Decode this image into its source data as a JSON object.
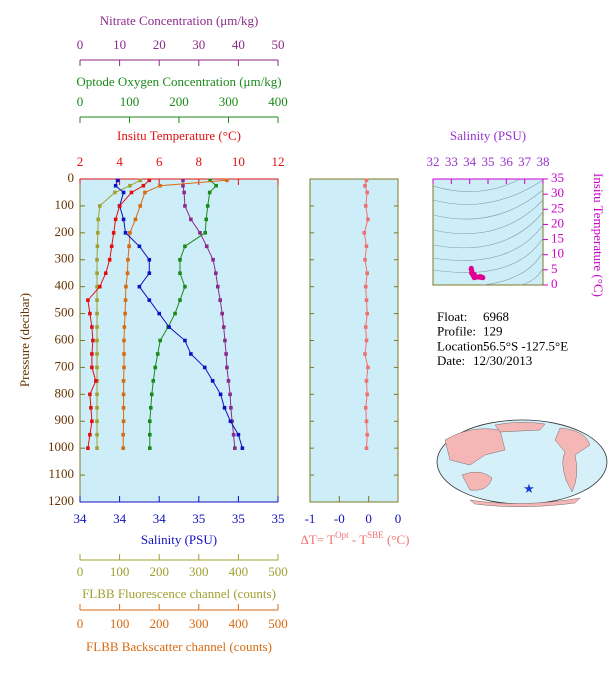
{
  "chart_data": [
    {
      "type": "profile",
      "ylabel": "Pressure (decibar)",
      "ylim": [
        0,
        1200
      ],
      "yticks": [
        0,
        100,
        200,
        300,
        400,
        500,
        600,
        700,
        800,
        900,
        1000,
        1100,
        1200
      ],
      "y": [
        5,
        25,
        50,
        100,
        150,
        200,
        250,
        300,
        350,
        400,
        450,
        500,
        550,
        600,
        650,
        700,
        750,
        800,
        850,
        900,
        950,
        1000
      ],
      "axes": [
        {
          "side": "top",
          "label": "Nitrate Concentration (μm/kg)",
          "color": "#8b2a8b",
          "xlim": [
            0,
            50
          ],
          "xticks": [
            0,
            10,
            20,
            30,
            40,
            50
          ]
        },
        {
          "side": "top",
          "label": "Optode Oxygen Concentration (μm/kg)",
          "color": "#1a8a1a",
          "xlim": [
            0,
            400
          ],
          "xticks": [
            0,
            100,
            200,
            300,
            400
          ]
        },
        {
          "side": "top",
          "label": "Insitu Temperature (°C)",
          "color": "#e01010",
          "xlim": [
            2,
            12
          ],
          "xticks": [
            2,
            4,
            6,
            8,
            10,
            12
          ]
        },
        {
          "side": "bottom",
          "label": "Salinity (PSU)",
          "color": "#1010c0",
          "xlim": [
            33.9,
            34.9
          ],
          "xticks": [
            {
              "value": 33.9,
              "label": "34"
            },
            {
              "value": 34.1,
              "label": "34"
            },
            {
              "value": 34.3,
              "label": "34"
            },
            {
              "value": 34.5,
              "label": "35"
            },
            {
              "value": 34.7,
              "label": "35"
            },
            {
              "value": 34.9,
              "label": "35"
            }
          ]
        },
        {
          "side": "bottom",
          "label": "FLBB Fluorescence channel (counts)",
          "color": "#a0a030",
          "xlim": [
            0,
            500
          ],
          "xticks": [
            0,
            100,
            200,
            300,
            400,
            500
          ]
        },
        {
          "side": "bottom",
          "label": "FLBB Backscatter channel (counts)",
          "color": "#d86a10",
          "xlim": [
            0,
            500
          ],
          "xticks": [
            0,
            100,
            200,
            300,
            400,
            500
          ]
        }
      ],
      "series": [
        {
          "axis": 0,
          "color": "#8b2a8b",
          "values": [
            26,
            26,
            26.3,
            26.5,
            28,
            30.3,
            32,
            33.6,
            34.3,
            34.8,
            35.4,
            35.9,
            36.3,
            36.6,
            36.9,
            37.1,
            37.5,
            37.9,
            38.1,
            38.4,
            38.8,
            39.1
          ]
        },
        {
          "axis": 1,
          "color": "#1a8a1a",
          "values": [
            263,
            275,
            262,
            258,
            255,
            253,
            212,
            202,
            202,
            212,
            202,
            192,
            178,
            162,
            157,
            152,
            148,
            145,
            143,
            141,
            141,
            141
          ]
        },
        {
          "axis": 4,
          "color": "#a0a030",
          "values": [
            152,
            126,
            88,
            50,
            46,
            45,
            44,
            43,
            43,
            43,
            43,
            43,
            43,
            43,
            43,
            43,
            43,
            43,
            43,
            43,
            43,
            43
          ]
        },
        {
          "axis": 5,
          "color": "#d86a10",
          "values": [
            371,
            202,
            164,
            152,
            140,
            126,
            124,
            121,
            120,
            116,
            115,
            114,
            112,
            111,
            111,
            111,
            110,
            110,
            110,
            110,
            109,
            109
          ]
        },
        {
          "axis": 3,
          "color": "#1010c0",
          "values": [
            34.09,
            34.08,
            34.12,
            34.1,
            34.12,
            34.13,
            34.2,
            34.25,
            34.25,
            34.2,
            34.25,
            34.3,
            34.35,
            34.43,
            34.46,
            34.53,
            34.57,
            34.61,
            34.63,
            34.66,
            34.7,
            34.72
          ]
        },
        {
          "axis": 2,
          "color": "#e01010",
          "values": [
            5.5,
            5.2,
            4.6,
            4.0,
            3.8,
            3.7,
            3.6,
            3.5,
            3.3,
            3.0,
            2.4,
            2.5,
            2.6,
            2.65,
            2.6,
            2.6,
            2.8,
            2.5,
            2.55,
            2.6,
            2.5,
            2.4
          ]
        }
      ]
    },
    {
      "type": "profile",
      "xlabel_parts": [
        "ΔT= T",
        "Opt",
        " - T",
        "SBE",
        " (°C)"
      ],
      "color": "#f07070",
      "xlim": [
        -0.8,
        0.4
      ],
      "xticks": [
        {
          "value": -0.8,
          "label": "-1"
        },
        {
          "value": -0.4,
          "label": "-0"
        },
        0,
        {
          "value": 0.4,
          "label": "0"
        }
      ],
      "ylim": [
        0,
        1200
      ],
      "yticks": [
        0,
        100,
        200,
        300,
        400,
        500,
        600,
        700,
        800,
        900,
        1000,
        1100,
        1200
      ],
      "y": [
        5,
        25,
        50,
        100,
        150,
        200,
        250,
        300,
        350,
        400,
        450,
        500,
        550,
        600,
        650,
        700,
        750,
        800,
        850,
        900,
        950,
        1000
      ],
      "values": [
        -0.03,
        -0.05,
        -0.02,
        -0.04,
        -0.01,
        -0.06,
        -0.03,
        -0.05,
        -0.02,
        -0.04,
        -0.03,
        -0.02,
        -0.04,
        -0.03,
        -0.05,
        -0.01,
        -0.03,
        -0.02,
        -0.04,
        -0.03,
        -0.02,
        -0.03
      ]
    },
    {
      "type": "scatter",
      "title": "Salinity (PSU)",
      "ylabel": "Insitu Temperature (°C)",
      "color": "#e0008f",
      "xlim": [
        32,
        38
      ],
      "xticks": [
        32,
        33,
        34,
        35,
        36,
        37,
        38
      ],
      "ylim": [
        0,
        35
      ],
      "yticks": [
        0,
        5,
        10,
        15,
        20,
        25,
        30,
        35
      ],
      "x": [
        34.09,
        34.08,
        34.12,
        34.1,
        34.12,
        34.13,
        34.2,
        34.25,
        34.25,
        34.2,
        34.25,
        34.3,
        34.35,
        34.43,
        34.46,
        34.53,
        34.57,
        34.61,
        34.63,
        34.66,
        34.7,
        34.72
      ],
      "values": [
        5.5,
        5.2,
        4.6,
        4.0,
        3.8,
        3.7,
        3.6,
        3.5,
        3.3,
        3.0,
        2.4,
        2.5,
        2.6,
        2.65,
        2.6,
        2.6,
        2.8,
        2.5,
        2.55,
        2.6,
        2.5,
        2.4
      ]
    }
  ],
  "info": [
    [
      "Float:",
      "6968"
    ],
    [
      "Profile:",
      "129"
    ],
    [
      "Location:",
      "56.5°S  -127.5°E"
    ],
    [
      "Date:",
      "12/30/2013"
    ]
  ]
}
